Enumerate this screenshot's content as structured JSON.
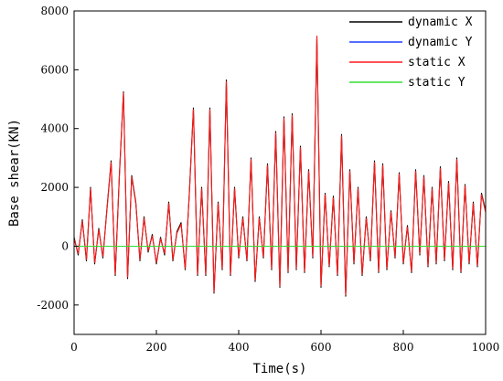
{
  "chart_data": {
    "type": "line",
    "xlabel": "Time(s)",
    "ylabel": "Base shear(KN)",
    "xlim": [
      0,
      1000
    ],
    "ylim": [
      -3000,
      8000
    ],
    "xticks": [
      0,
      200,
      400,
      600,
      800,
      1000
    ],
    "yticks": [
      -2000,
      0,
      2000,
      4000,
      6000,
      8000
    ],
    "grid": false,
    "legend_position": "top-right",
    "x": [
      0,
      10,
      20,
      30,
      40,
      50,
      60,
      70,
      80,
      90,
      100,
      110,
      120,
      130,
      140,
      150,
      160,
      170,
      180,
      190,
      200,
      210,
      220,
      230,
      240,
      250,
      260,
      270,
      280,
      290,
      300,
      310,
      320,
      330,
      340,
      350,
      360,
      370,
      380,
      390,
      400,
      410,
      420,
      430,
      440,
      450,
      460,
      470,
      480,
      490,
      500,
      510,
      520,
      530,
      540,
      550,
      560,
      570,
      580,
      590,
      600,
      610,
      620,
      630,
      640,
      650,
      660,
      670,
      680,
      690,
      700,
      710,
      720,
      730,
      740,
      750,
      760,
      770,
      780,
      790,
      800,
      810,
      820,
      830,
      840,
      850,
      860,
      870,
      880,
      890,
      900,
      910,
      920,
      930,
      940,
      950,
      960,
      970,
      980,
      990,
      1000
    ],
    "series": [
      {
        "name": "dynamic X",
        "color": "#000000",
        "values": [
          300,
          -300,
          900,
          -500,
          2000,
          -600,
          600,
          -400,
          1300,
          2900,
          -1000,
          2400,
          5250,
          -1100,
          2400,
          1500,
          -500,
          1000,
          -200,
          400,
          -600,
          300,
          -300,
          1500,
          -500,
          500,
          800,
          -800,
          1800,
          4700,
          -1000,
          2000,
          -1000,
          4700,
          -1600,
          1500,
          -800,
          5650,
          -1000,
          2000,
          -400,
          1000,
          -500,
          3000,
          -1200,
          1000,
          -400,
          2800,
          -800,
          3900,
          -1400,
          4400,
          -900,
          4500,
          -800,
          3400,
          -900,
          2600,
          -400,
          7100,
          -1400,
          1800,
          -700,
          1700,
          -1000,
          3800,
          -1700,
          2600,
          -600,
          2000,
          -1000,
          1000,
          -500,
          2900,
          -900,
          2800,
          -800,
          1200,
          -400,
          2500,
          -600,
          700,
          -900,
          2600,
          -300,
          2400,
          -700,
          2000,
          -600,
          2700,
          -500,
          2200,
          -800,
          3000,
          -900,
          2100,
          -600,
          1500,
          -700,
          1800,
          1200
        ]
      },
      {
        "name": "dynamic Y",
        "color": "#1f3fff",
        "values": [
          0,
          0,
          0,
          0,
          0,
          0,
          0,
          0,
          0,
          0,
          0,
          0,
          0,
          0,
          0,
          0,
          0,
          0,
          0,
          0,
          0,
          0,
          0,
          0,
          0,
          0,
          0,
          0,
          0,
          0,
          0,
          0,
          0,
          0,
          0,
          0,
          0,
          0,
          0,
          0,
          0,
          0,
          0,
          0,
          0,
          0,
          0,
          0,
          0,
          0,
          0,
          0,
          0,
          0,
          0,
          0,
          0,
          0,
          0,
          0,
          0,
          0,
          0,
          0,
          0,
          0,
          0,
          0,
          0,
          0,
          0,
          0,
          0,
          0,
          0,
          0,
          0,
          0,
          0,
          0,
          0,
          0,
          0,
          0,
          0,
          0,
          0,
          0,
          0,
          0,
          0,
          0,
          0,
          0,
          0,
          0,
          0,
          0,
          0,
          0,
          0
        ]
      },
      {
        "name": "static X",
        "color": "#ff1a1a",
        "values": [
          250,
          -250,
          850,
          -450,
          1950,
          -550,
          550,
          -350,
          1250,
          2850,
          -950,
          2350,
          5200,
          -1050,
          2350,
          1450,
          -450,
          950,
          -150,
          350,
          -550,
          250,
          -250,
          1450,
          -450,
          450,
          750,
          -750,
          1750,
          4650,
          -950,
          1950,
          -950,
          4650,
          -1550,
          1450,
          -750,
          5600,
          -950,
          1950,
          -350,
          950,
          -450,
          2950,
          -1150,
          950,
          -350,
          2750,
          -750,
          3850,
          -1350,
          4350,
          -850,
          4450,
          -750,
          3350,
          -850,
          2550,
          -350,
          7150,
          -1350,
          1750,
          -650,
          1650,
          -950,
          3750,
          -1650,
          2550,
          -550,
          1950,
          -950,
          950,
          -450,
          2850,
          -850,
          2750,
          -750,
          1150,
          -350,
          2450,
          -550,
          650,
          -850,
          2550,
          -250,
          2350,
          -650,
          1950,
          -550,
          2650,
          -450,
          2150,
          -750,
          2950,
          -850,
          2050,
          -550,
          1450,
          -650,
          1750,
          1150
        ]
      },
      {
        "name": "static Y",
        "color": "#33dd33",
        "values": [
          0,
          0,
          0,
          0,
          0,
          0,
          0,
          0,
          0,
          0,
          0,
          0,
          0,
          0,
          0,
          0,
          0,
          0,
          0,
          0,
          0,
          0,
          0,
          0,
          0,
          0,
          0,
          0,
          0,
          0,
          0,
          0,
          0,
          0,
          0,
          0,
          0,
          0,
          0,
          0,
          0,
          0,
          0,
          0,
          0,
          0,
          0,
          0,
          0,
          0,
          0,
          0,
          0,
          0,
          0,
          0,
          0,
          0,
          0,
          0,
          0,
          0,
          0,
          0,
          0,
          0,
          0,
          0,
          0,
          0,
          0,
          0,
          0,
          0,
          0,
          0,
          0,
          0,
          0,
          0,
          0,
          0,
          0,
          0,
          0,
          0,
          0,
          0,
          0,
          0,
          0,
          0,
          0,
          0,
          0,
          0,
          0,
          0,
          0,
          0,
          0
        ]
      }
    ]
  }
}
